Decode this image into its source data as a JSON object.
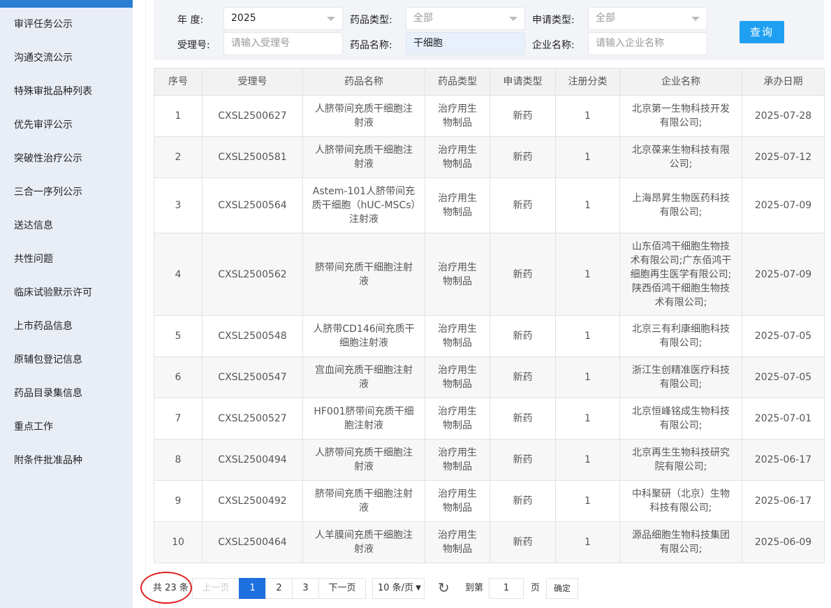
{
  "sidebar": {
    "items": [
      "审评任务公示",
      "沟通交流公示",
      "特殊审批品种列表",
      "优先审评公示",
      "突破性治疗公示",
      "三合一序列公示",
      "送达信息",
      "共性问题",
      "临床试验默示许可",
      "上市药品信息",
      "原辅包登记信息",
      "药品目录集信息",
      "重点工作",
      "附条件批准品种"
    ]
  },
  "filter": {
    "year_label": "年  度:",
    "year_value": "2025",
    "drug_type_label": "药品类型:",
    "drug_type_value": "全部",
    "apply_type_label": "申请类型:",
    "apply_type_value": "全部",
    "accept_no_label": "受理号:",
    "accept_no_placeholder": "请输入受理号",
    "drug_name_label": "药品名称:",
    "drug_name_value": "干细胞",
    "company_label": "企业名称:",
    "company_placeholder": "请输入企业名称",
    "query_button": "查询"
  },
  "table": {
    "headers": [
      "序号",
      "受理号",
      "药品名称",
      "药品类型",
      "申请类型",
      "注册分类",
      "企业名称",
      "承办日期"
    ],
    "rows": [
      [
        "1",
        "CXSL2500627",
        "人脐带间充质干细胞注射液",
        "治疗用生物制品",
        "新药",
        "1",
        "北京第一生物科技开发有限公司;",
        "2025-07-28"
      ],
      [
        "2",
        "CXSL2500581",
        "人脐带间充质干细胞注射液",
        "治疗用生物制品",
        "新药",
        "1",
        "北京葆来生物科技有限公司;",
        "2025-07-12"
      ],
      [
        "3",
        "CXSL2500564",
        "Astem-101人脐带间充质干细胞（hUC-MSCs）注射液",
        "治疗用生物制品",
        "新药",
        "1",
        "上海昂昇生物医药科技有限公司;",
        "2025-07-09"
      ],
      [
        "4",
        "CXSL2500562",
        "脐带间充质干细胞注射液",
        "治疗用生物制品",
        "新药",
        "1",
        "山东佰鸿干细胞生物技术有限公司;广东佰鸿干细胞再生医学有限公司;陕西佰鸿干细胞生物技术有限公司;",
        "2025-07-09"
      ],
      [
        "5",
        "CXSL2500548",
        "人脐带CD146间充质干细胞注射液",
        "治疗用生物制品",
        "新药",
        "1",
        "北京三有利康细胞科技有限公司;",
        "2025-07-05"
      ],
      [
        "6",
        "CXSL2500547",
        "宫血间充质干细胞注射液",
        "治疗用生物制品",
        "新药",
        "1",
        "浙江生创精准医疗科技有限公司;",
        "2025-07-05"
      ],
      [
        "7",
        "CXSL2500527",
        "HF001脐带间充质干细胞注射液",
        "治疗用生物制品",
        "新药",
        "1",
        "北京恒峰铭成生物科技有限公司;",
        "2025-07-01"
      ],
      [
        "8",
        "CXSL2500494",
        "人脐带间充质干细胞注射液",
        "治疗用生物制品",
        "新药",
        "1",
        "北京再生生物科技研究院有限公司;",
        "2025-06-17"
      ],
      [
        "9",
        "CXSL2500492",
        "脐带间充质干细胞注射液",
        "治疗用生物制品",
        "新药",
        "1",
        "中科聚研（北京）生物科技有限公司;",
        "2025-06-17"
      ],
      [
        "10",
        "CXSL2500464",
        "人羊膜间充质干细胞注射液",
        "治疗用生物制品",
        "新药",
        "1",
        "源品细胞生物科技集团有限公司;",
        "2025-06-09"
      ]
    ]
  },
  "pager": {
    "total": "共 23 条",
    "prev": "上一页",
    "pages": [
      "1",
      "2",
      "3"
    ],
    "current": "1",
    "next": "下一页",
    "page_size": "10 条/页",
    "goto_label": "到第",
    "goto_value": "1",
    "page_unit": "页",
    "confirm": "确定",
    "accent": "#1e6fe0"
  },
  "colors": {
    "sidebar_bg": "#e9eef6",
    "query_button": "#1e9ff2",
    "annotation": "#e02020"
  }
}
